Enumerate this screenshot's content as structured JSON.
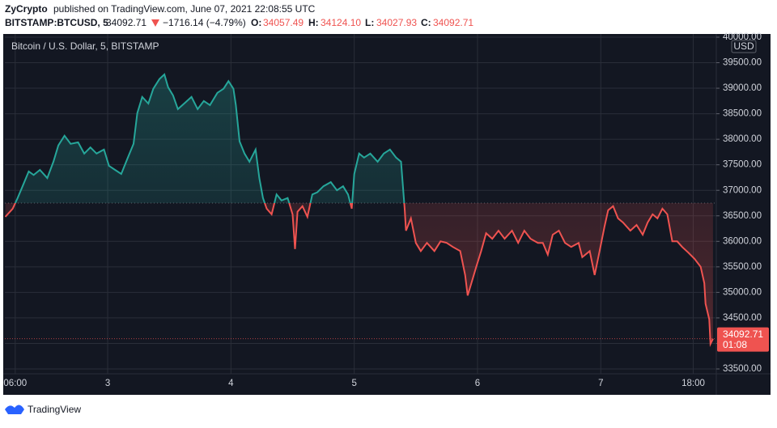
{
  "header": {
    "author": "ZyCrypto",
    "published": "published on TradingView.com, June 07, 2021 22:08:55 UTC",
    "symbol": "BITSTAMP:BTCUSD, 5",
    "last": "34092.71",
    "change": "−1716.14 (−4.79%)",
    "open_label": "O:",
    "open": "34057.49",
    "high_label": "H:",
    "high": "34124.10",
    "low_label": "L:",
    "low": "34027.93",
    "close_label": "C:",
    "close": "34092.71"
  },
  "chart_data": {
    "type": "line",
    "legend": "Bitcoin / U.S. Dollar, 5, BITSTAMP",
    "currency": "USD",
    "up_color": "#26a69a",
    "down_color": "#ef5350",
    "base": 36750,
    "grid": true,
    "last_price": 34092.71,
    "countdown": "01:08",
    "xlim": [
      2.166,
      7.937
    ],
    "ylim": [
      33405,
      40063
    ],
    "xticks": [
      {
        "value": 2.25,
        "label": "06:00"
      },
      3,
      4,
      5,
      6,
      7,
      {
        "value": 7.75,
        "label": "18:00"
      }
    ],
    "yticks": [
      {
        "value": 33500,
        "label": "33500.00"
      },
      {
        "value": 34000,
        "label": "34000.00"
      },
      {
        "value": 34500,
        "label": "34500.00"
      },
      {
        "value": 35000,
        "label": "35000.00"
      },
      {
        "value": 35500,
        "label": "35500.00"
      },
      {
        "value": 36000,
        "label": "36000.00"
      },
      {
        "value": 36500,
        "label": "36500.00"
      },
      {
        "value": 37000,
        "label": "37000.00"
      },
      {
        "value": 37500,
        "label": "37500.00"
      },
      {
        "value": 38000,
        "label": "38000.00"
      },
      {
        "value": 38500,
        "label": "38500.00"
      },
      {
        "value": 39000,
        "label": "39000.00"
      },
      {
        "value": 39500,
        "label": "39500.00"
      },
      {
        "value": 40000,
        "label": "40000.00"
      }
    ],
    "x": [
      2.17,
      2.23,
      2.27,
      2.31,
      2.36,
      2.4,
      2.45,
      2.51,
      2.56,
      2.6,
      2.65,
      2.7,
      2.76,
      2.81,
      2.86,
      2.91,
      2.97,
      3.01,
      3.06,
      3.11,
      3.16,
      3.21,
      3.24,
      3.28,
      3.33,
      3.37,
      3.42,
      3.46,
      3.49,
      3.53,
      3.57,
      3.62,
      3.68,
      3.73,
      3.78,
      3.83,
      3.89,
      3.94,
      3.98,
      4.02,
      4.04,
      4.07,
      4.11,
      4.15,
      4.2,
      4.23,
      4.26,
      4.29,
      4.33,
      4.37,
      4.41,
      4.46,
      4.5,
      4.52,
      4.54,
      4.58,
      4.62,
      4.66,
      4.7,
      4.75,
      4.81,
      4.86,
      4.91,
      4.95,
      4.98,
      5.0,
      5.04,
      5.08,
      5.13,
      5.19,
      5.24,
      5.29,
      5.34,
      5.38,
      5.41,
      5.42,
      5.46,
      5.5,
      5.54,
      5.59,
      5.65,
      5.7,
      5.75,
      5.8,
      5.86,
      5.9,
      5.92,
      5.95,
      5.99,
      6.03,
      6.07,
      6.12,
      6.17,
      6.22,
      6.28,
      6.33,
      6.38,
      6.43,
      6.49,
      6.53,
      6.57,
      6.61,
      6.66,
      6.71,
      6.76,
      6.82,
      6.85,
      6.91,
      6.95,
      6.99,
      7.03,
      7.06,
      7.1,
      7.14,
      7.18,
      7.24,
      7.29,
      7.34,
      7.38,
      7.42,
      7.46,
      7.5,
      7.54,
      7.58,
      7.62,
      7.66,
      7.71,
      7.76,
      7.81,
      7.84,
      7.85,
      7.88,
      7.89,
      7.91
    ],
    "values": [
      36480,
      36640,
      36850,
      37080,
      37370,
      37300,
      37400,
      37240,
      37560,
      37880,
      38070,
      37910,
      37940,
      37720,
      37840,
      37720,
      37800,
      37480,
      37400,
      37320,
      37620,
      37910,
      38510,
      38830,
      38700,
      38990,
      39180,
      39270,
      39020,
      38860,
      38590,
      38700,
      38830,
      38590,
      38750,
      38670,
      38910,
      38990,
      39140,
      38990,
      38670,
      37960,
      37720,
      37560,
      37800,
      37240,
      36850,
      36640,
      36530,
      36920,
      36800,
      36850,
      36530,
      35850,
      36580,
      36690,
      36480,
      36920,
      36960,
      37080,
      37160,
      37000,
      37080,
      36920,
      36640,
      37320,
      37720,
      37640,
      37720,
      37560,
      37720,
      37800,
      37640,
      37560,
      36610,
      36210,
      36450,
      35970,
      35810,
      35970,
      35810,
      36000,
      35970,
      35890,
      35810,
      35340,
      34940,
      35180,
      35500,
      35810,
      36160,
      36050,
      36210,
      36050,
      36210,
      35970,
      36210,
      36050,
      35970,
      35970,
      35740,
      36130,
      36210,
      35970,
      35890,
      35970,
      35690,
      35810,
      35340,
      35810,
      36290,
      36610,
      36690,
      36450,
      36370,
      36210,
      36320,
      36130,
      36370,
      36530,
      36450,
      36640,
      36530,
      36000,
      36000,
      35890,
      35780,
      35660,
      35500,
      35180,
      34780,
      34470,
      33990,
      34090
    ]
  }
}
